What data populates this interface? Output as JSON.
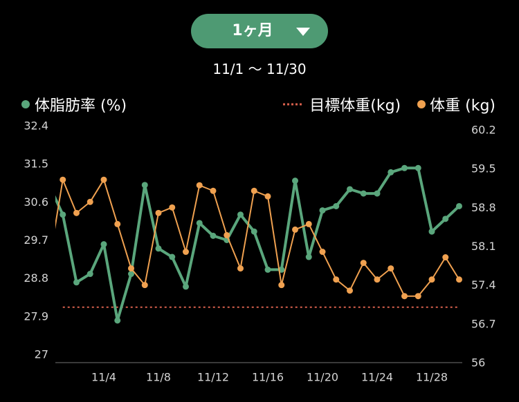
{
  "period_selector": {
    "label": "1ヶ月",
    "icon": "caret-down-icon"
  },
  "date_range": "11/1 〜 11/30",
  "colors": {
    "background": "#000000",
    "accent": "#4e9a73",
    "text": "#ffffff",
    "axis_label": "#d4d4d4",
    "axis_line": "#4d4d4d"
  },
  "chart_data": {
    "type": "line",
    "legend_position": "top",
    "grid": false,
    "x": [
      "10/31",
      "11/1",
      "11/2",
      "11/3",
      "11/4",
      "11/5",
      "11/6",
      "11/7",
      "11/8",
      "11/9",
      "11/10",
      "11/11",
      "11/12",
      "11/13",
      "11/14",
      "11/15",
      "11/16",
      "11/17",
      "11/18",
      "11/19",
      "11/20",
      "11/21",
      "11/22",
      "11/23",
      "11/24",
      "11/25",
      "11/26",
      "11/27",
      "11/28",
      "11/29",
      "11/30"
    ],
    "x_ticks": [
      "11/4",
      "11/8",
      "11/12",
      "11/16",
      "11/20",
      "11/24",
      "11/28"
    ],
    "axes": {
      "left": {
        "ylim": [
          27,
          32.4
        ],
        "ticks": [
          27,
          27.9,
          28.8,
          29.7,
          30.6,
          31.5,
          32.4
        ]
      },
      "right": {
        "ylim": [
          56,
          60.2
        ],
        "ticks": [
          56,
          56.7,
          57.4,
          58.1,
          58.8,
          59.5,
          60.2
        ]
      }
    },
    "series": [
      {
        "name": "体脂肪率 (%)",
        "axis": "left",
        "color": "#5aa67c",
        "markers": true,
        "values": [
          31.0,
          30.3,
          28.7,
          28.9,
          29.6,
          27.8,
          28.9,
          31.0,
          29.5,
          29.3,
          28.6,
          30.1,
          29.8,
          29.7,
          30.3,
          29.9,
          29.0,
          29.0,
          31.1,
          29.3,
          30.4,
          30.5,
          30.9,
          30.8,
          30.8,
          31.3,
          31.4,
          31.4,
          29.9,
          30.2,
          30.5
        ]
      },
      {
        "name": "体重 (kg)",
        "axis": "right",
        "color": "#f0a150",
        "markers": true,
        "values": [
          57.8,
          59.3,
          58.7,
          58.9,
          59.3,
          58.5,
          57.7,
          57.4,
          58.7,
          58.8,
          58.0,
          59.2,
          59.1,
          58.3,
          57.7,
          59.1,
          59.0,
          57.4,
          58.4,
          58.5,
          58.0,
          57.5,
          57.3,
          57.8,
          57.5,
          57.7,
          57.2,
          57.2,
          57.5,
          57.9,
          57.5
        ]
      },
      {
        "name": "目標体重(kg)",
        "axis": "right",
        "color": "#d9604d",
        "style": "dotted",
        "x": [
          "11/1",
          "11/30"
        ],
        "values": [
          57.0,
          57.0
        ]
      }
    ]
  }
}
